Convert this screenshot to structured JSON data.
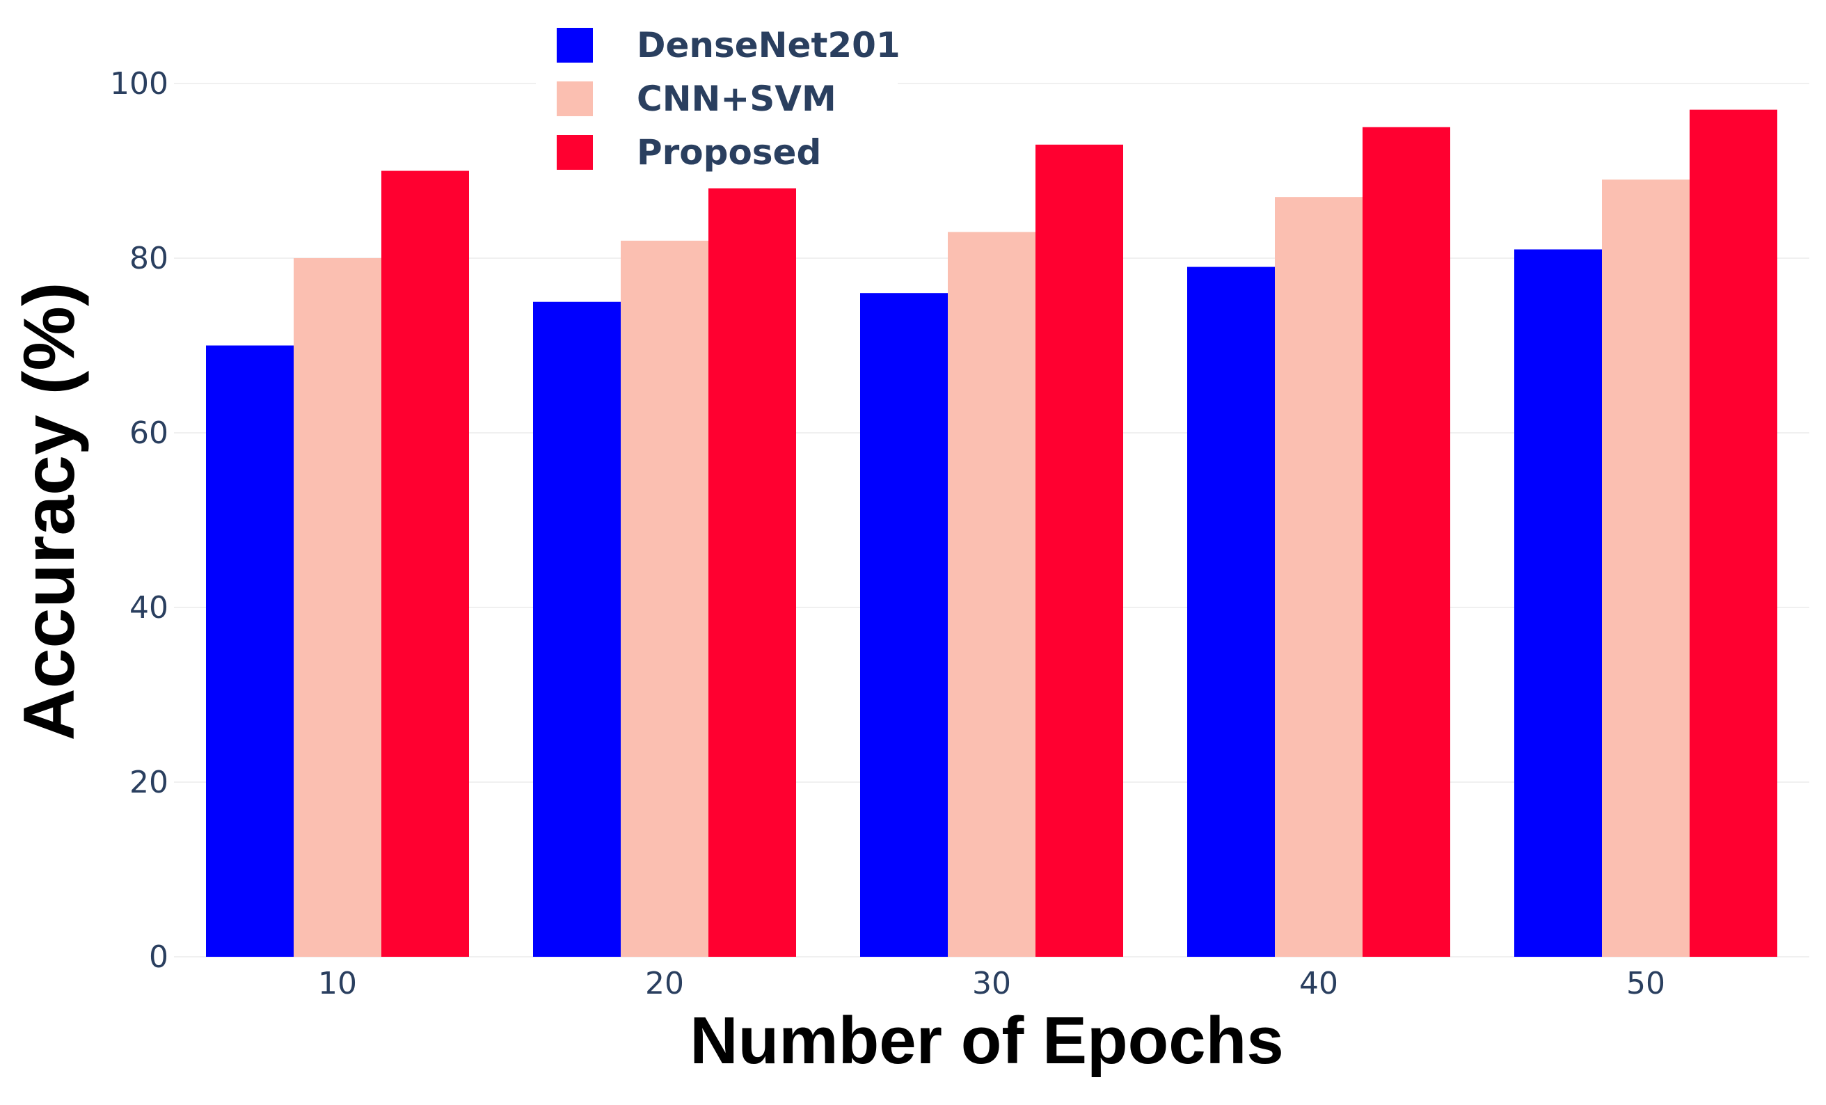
{
  "chart_data": {
    "type": "bar",
    "title": "",
    "xlabel": "Number of Epochs",
    "ylabel": "Accuracy (%)",
    "categories": [
      "10",
      "20",
      "30",
      "40",
      "50"
    ],
    "ylim": [
      0,
      100
    ],
    "yticks": [
      "0",
      "20",
      "40",
      "60",
      "80",
      "100"
    ],
    "grid": true,
    "legend_position": "top-left",
    "series": [
      {
        "name": "DenseNet201",
        "color": "#0000ff",
        "values": [
          70,
          75,
          76,
          79,
          81
        ]
      },
      {
        "name": "CNN+SVM",
        "color": "#fbbfb1",
        "values": [
          80,
          82,
          83,
          87,
          89
        ]
      },
      {
        "name": "Proposed",
        "color": "#ff0030",
        "values": [
          90,
          88,
          93,
          95,
          97
        ]
      }
    ]
  }
}
